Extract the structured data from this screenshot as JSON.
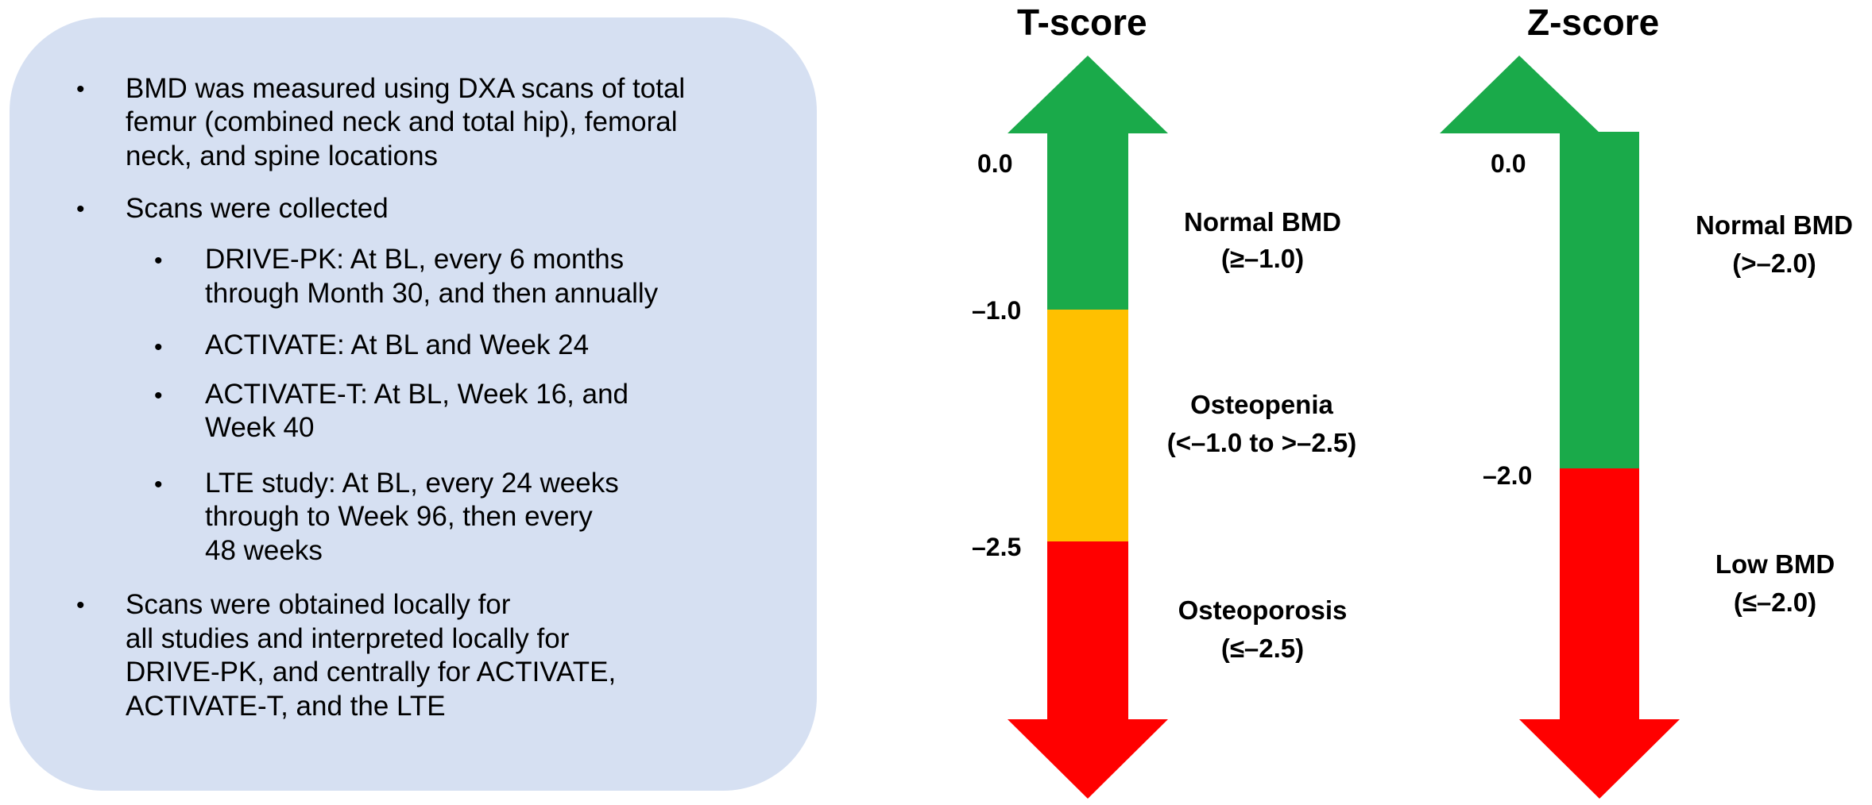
{
  "info_panel": {
    "bullets": [
      {
        "level": 1,
        "lines": [
          "BMD was measured using DXA scans of total",
          "femur (combined neck and total hip), femoral",
          "neck, and spine locations"
        ]
      },
      {
        "level": 1,
        "lines": [
          "Scans were collected"
        ]
      },
      {
        "level": 2,
        "lines": [
          "DRIVE-PK: At BL, every 6 months",
          "through Month 30, and then annually"
        ]
      },
      {
        "level": 2,
        "lines": [
          "ACTIVATE: At BL and Week 24"
        ]
      },
      {
        "level": 2,
        "lines": [
          "ACTIVATE-T: At BL, Week 16, and",
          "Week 40"
        ]
      },
      {
        "level": 2,
        "lines": [
          "LTE study: At BL, every 24 weeks",
          "through to Week 96, then every",
          "48 weeks"
        ]
      },
      {
        "level": 1,
        "lines": [
          "Scans were obtained locally for",
          "all studies and interpreted locally for",
          "DRIVE-PK, and centrally for ACTIVATE,",
          "ACTIVATE-T, and the LTE"
        ]
      }
    ]
  },
  "t_score": {
    "title": "T-score",
    "ticks": [
      "0.0",
      "–1.0",
      "–2.5"
    ],
    "categories": [
      {
        "label": "Normal BMD",
        "range": "(≥–1.0)",
        "color": "#1aaa4a"
      },
      {
        "label": "Osteopenia",
        "range": "(<–1.0 to >–2.5)",
        "color": "#ffc000"
      },
      {
        "label": "Osteoporosis",
        "range": "(≤–2.5)",
        "color": "#ff0000"
      }
    ]
  },
  "z_score": {
    "title": "Z-score",
    "ticks": [
      "0.0",
      "–2.0"
    ],
    "categories": [
      {
        "label": "Normal BMD",
        "range": "(>–2.0)",
        "color": "#1aaa4a"
      },
      {
        "label": "Low BMD",
        "range": "(≤–2.0)",
        "color": "#ff0000"
      }
    ]
  }
}
